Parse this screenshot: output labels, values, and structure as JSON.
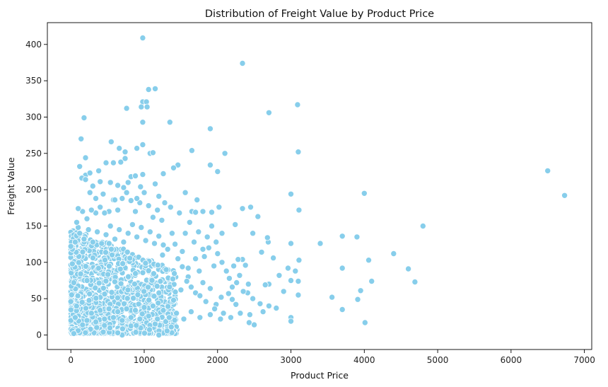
{
  "chart_data": {
    "type": "scatter",
    "title": "Distribution of Freight Value by Product Price",
    "xlabel": "Product Price",
    "ylabel": "Freight Value",
    "xlim": [
      -320,
      7100
    ],
    "ylim": [
      -20,
      430
    ],
    "xticks": [
      0,
      1000,
      2000,
      3000,
      4000,
      5000,
      6000,
      7000
    ],
    "yticks": [
      0,
      50,
      100,
      150,
      200,
      250,
      300,
      350,
      400
    ],
    "grid": false,
    "point_color": "#87ceeb",
    "edge_color": "#ffffff",
    "points": [
      [
        980,
        409
      ],
      [
        2340,
        374
      ],
      [
        1060,
        338
      ],
      [
        1150,
        339
      ],
      [
        760,
        312
      ],
      [
        980,
        321
      ],
      [
        1030,
        321
      ],
      [
        960,
        314
      ],
      [
        1040,
        314
      ],
      [
        3090,
        317
      ],
      [
        2700,
        306
      ],
      [
        180,
        299
      ],
      [
        980,
        293
      ],
      [
        1350,
        293
      ],
      [
        1900,
        284
      ],
      [
        140,
        270
      ],
      [
        550,
        266
      ],
      [
        3100,
        252
      ],
      [
        980,
        262
      ],
      [
        900,
        257
      ],
      [
        1080,
        250
      ],
      [
        1120,
        251
      ],
      [
        1650,
        254
      ],
      [
        2100,
        250
      ],
      [
        660,
        257
      ],
      [
        740,
        252
      ],
      [
        6500,
        226
      ],
      [
        6730,
        192
      ],
      [
        1460,
        234
      ],
      [
        1900,
        234
      ],
      [
        2000,
        225
      ],
      [
        4000,
        195
      ],
      [
        3000,
        194
      ],
      [
        200,
        244
      ],
      [
        120,
        232
      ],
      [
        380,
        226
      ],
      [
        480,
        237
      ],
      [
        580,
        237
      ],
      [
        680,
        238
      ],
      [
        740,
        243
      ],
      [
        820,
        218
      ],
      [
        880,
        219
      ],
      [
        980,
        221
      ],
      [
        200,
        220
      ],
      [
        260,
        223
      ],
      [
        300,
        205
      ],
      [
        400,
        211
      ],
      [
        540,
        210
      ],
      [
        640,
        206
      ],
      [
        720,
        203
      ],
      [
        780,
        210
      ],
      [
        950,
        204
      ],
      [
        1200,
        191
      ],
      [
        1650,
        170
      ],
      [
        1700,
        169
      ],
      [
        1800,
        170
      ],
      [
        1920,
        169
      ],
      [
        2450,
        176
      ],
      [
        2340,
        174
      ],
      [
        3110,
        172
      ],
      [
        2550,
        163
      ],
      [
        4800,
        150
      ],
      [
        3400,
        126
      ],
      [
        3000,
        126
      ],
      [
        3110,
        103
      ],
      [
        3700,
        136
      ],
      [
        3900,
        135
      ],
      [
        2690,
        128
      ],
      [
        2680,
        134
      ],
      [
        2340,
        104
      ],
      [
        2280,
        104
      ],
      [
        4400,
        112
      ],
      [
        4060,
        103
      ],
      [
        3700,
        92
      ],
      [
        4600,
        91
      ],
      [
        3100,
        74
      ],
      [
        3000,
        75
      ],
      [
        2700,
        70
      ],
      [
        2650,
        69
      ],
      [
        4100,
        74
      ],
      [
        4690,
        73
      ],
      [
        3950,
        61
      ],
      [
        3910,
        49
      ],
      [
        3560,
        52
      ],
      [
        3100,
        55
      ],
      [
        3700,
        35
      ],
      [
        4010,
        17
      ],
      [
        3000,
        24
      ],
      [
        3000,
        19
      ],
      [
        2800,
        37
      ],
      [
        2900,
        60
      ],
      [
        2200,
        66
      ],
      [
        2430,
        17
      ],
      [
        2500,
        14
      ],
      [
        2620,
        32
      ],
      [
        2700,
        40
      ],
      [
        2580,
        43
      ],
      [
        2440,
        28
      ],
      [
        2310,
        30
      ],
      [
        2200,
        49
      ],
      [
        2410,
        58
      ],
      [
        2480,
        50
      ],
      [
        2150,
        57
      ],
      [
        2050,
        52
      ],
      [
        1980,
        42
      ],
      [
        1900,
        64
      ],
      [
        1800,
        72
      ],
      [
        1700,
        58
      ],
      [
        1600,
        80
      ],
      [
        1500,
        62
      ],
      [
        1400,
        48
      ],
      [
        1300,
        90
      ],
      [
        1200,
        0
      ],
      [
        1250,
        110
      ],
      [
        1380,
        140
      ],
      [
        1420,
        125
      ],
      [
        1520,
        115
      ],
      [
        1600,
        92
      ],
      [
        1700,
        105
      ],
      [
        1750,
        88
      ],
      [
        1820,
        108
      ],
      [
        1880,
        120
      ],
      [
        1950,
        95
      ],
      [
        2000,
        112
      ],
      [
        2060,
        100
      ],
      [
        2120,
        88
      ],
      [
        2160,
        78
      ],
      [
        2220,
        95
      ],
      [
        2260,
        72
      ],
      [
        2300,
        82
      ],
      [
        2380,
        96
      ],
      [
        2420,
        70
      ],
      [
        1560,
        140
      ],
      [
        1620,
        155
      ],
      [
        1680,
        128
      ],
      [
        1740,
        142
      ],
      [
        1800,
        118
      ],
      [
        1860,
        135
      ],
      [
        1920,
        150
      ],
      [
        1980,
        128
      ],
      [
        2060,
        140
      ],
      [
        1480,
        168
      ],
      [
        1360,
        176
      ],
      [
        1280,
        182
      ],
      [
        1240,
        158
      ],
      [
        1180,
        172
      ],
      [
        1120,
        162
      ],
      [
        1060,
        178
      ],
      [
        1000,
        196
      ],
      [
        940,
        182
      ],
      [
        880,
        170
      ],
      [
        820,
        185
      ],
      [
        760,
        196
      ],
      [
        700,
        188
      ],
      [
        640,
        172
      ],
      [
        580,
        186
      ],
      [
        520,
        170
      ],
      [
        460,
        168
      ],
      [
        400,
        176
      ],
      [
        340,
        168
      ],
      [
        280,
        172
      ],
      [
        220,
        160
      ],
      [
        160,
        170
      ],
      [
        100,
        148
      ],
      [
        60,
        128
      ],
      [
        20,
        118
      ],
      [
        40,
        72
      ],
      [
        80,
        155
      ],
      [
        120,
        140
      ],
      [
        180,
        132
      ],
      [
        240,
        145
      ],
      [
        300,
        128
      ],
      [
        360,
        142
      ],
      [
        420,
        126
      ],
      [
        480,
        138
      ],
      [
        540,
        150
      ],
      [
        600,
        132
      ],
      [
        660,
        145
      ],
      [
        720,
        128
      ],
      [
        780,
        140
      ],
      [
        840,
        152
      ],
      [
        900,
        135
      ],
      [
        960,
        148
      ],
      [
        1020,
        130
      ],
      [
        1080,
        142
      ],
      [
        1140,
        126
      ],
      [
        1200,
        136
      ],
      [
        1260,
        124
      ],
      [
        1320,
        118
      ],
      [
        1460,
        105
      ],
      [
        1520,
        94
      ],
      [
        1580,
        74
      ],
      [
        1640,
        66
      ],
      [
        1760,
        54
      ],
      [
        1840,
        46
      ],
      [
        1960,
        36
      ],
      [
        2080,
        30
      ],
      [
        2180,
        24
      ],
      [
        2250,
        42
      ],
      [
        2350,
        60
      ],
      [
        2040,
        22
      ],
      [
        1900,
        28
      ],
      [
        1760,
        24
      ],
      [
        1640,
        32
      ],
      [
        1540,
        22
      ],
      [
        1440,
        30
      ],
      [
        1340,
        24
      ],
      [
        1260,
        34
      ],
      [
        1180,
        22
      ],
      [
        1120,
        40
      ],
      [
        1060,
        26
      ],
      [
        1000,
        38
      ],
      [
        940,
        22
      ],
      [
        880,
        34
      ],
      [
        820,
        24
      ],
      [
        760,
        36
      ],
      [
        700,
        20
      ],
      [
        640,
        32
      ],
      [
        700,
        0
      ],
      [
        640,
        3
      ],
      [
        580,
        24
      ],
      [
        520,
        36
      ],
      [
        460,
        22
      ],
      [
        400,
        34
      ],
      [
        340,
        18
      ],
      [
        280,
        30
      ],
      [
        220,
        20
      ],
      [
        160,
        14
      ],
      [
        100,
        6
      ],
      [
        40,
        2
      ],
      [
        60,
        24
      ],
      [
        0,
        46
      ],
      [
        20,
        98
      ],
      [
        0,
        122
      ],
      [
        100,
        174
      ],
      [
        150,
        216
      ],
      [
        200,
        214
      ],
      [
        260,
        196
      ],
      [
        340,
        188
      ],
      [
        440,
        194
      ],
      [
        600,
        186
      ],
      [
        900,
        188
      ],
      [
        1150,
        208
      ],
      [
        1260,
        222
      ],
      [
        1400,
        230
      ],
      [
        1560,
        196
      ],
      [
        1720,
        186
      ],
      [
        2020,
        176
      ],
      [
        2240,
        152
      ],
      [
        2480,
        140
      ],
      [
        2600,
        114
      ],
      [
        2760,
        106
      ],
      [
        2840,
        82
      ],
      [
        2960,
        92
      ],
      [
        3060,
        88
      ]
    ]
  }
}
